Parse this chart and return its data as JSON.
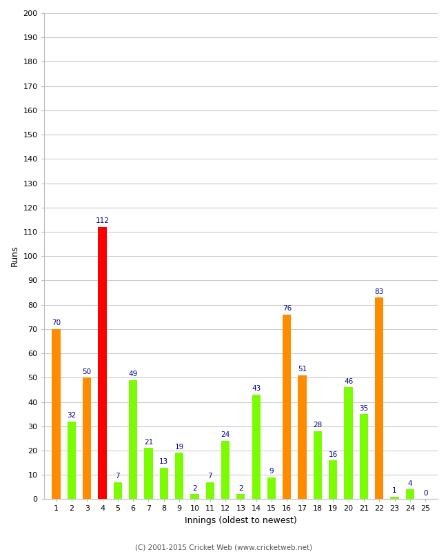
{
  "title": "",
  "xlabel": "Innings (oldest to newest)",
  "ylabel": "Runs",
  "innings": [
    1,
    2,
    3,
    4,
    5,
    6,
    7,
    8,
    9,
    10,
    11,
    12,
    13,
    14,
    15,
    16,
    17,
    18,
    19,
    20,
    21,
    22,
    23,
    24,
    25
  ],
  "values": [
    70,
    32,
    50,
    112,
    7,
    49,
    21,
    13,
    19,
    2,
    7,
    24,
    2,
    43,
    9,
    76,
    51,
    28,
    16,
    46,
    35,
    83,
    1,
    4,
    0
  ],
  "colors": [
    "#FF8C00",
    "#7CFC00",
    "#FF8C00",
    "#FF0000",
    "#7CFC00",
    "#7CFC00",
    "#7CFC00",
    "#7CFC00",
    "#7CFC00",
    "#7CFC00",
    "#7CFC00",
    "#7CFC00",
    "#7CFC00",
    "#7CFC00",
    "#7CFC00",
    "#FF8C00",
    "#FF8C00",
    "#7CFC00",
    "#7CFC00",
    "#7CFC00",
    "#7CFC00",
    "#FF8C00",
    "#7CFC00",
    "#7CFC00",
    "#7CFC00"
  ],
  "ylim": [
    0,
    200
  ],
  "yticks": [
    0,
    10,
    20,
    30,
    40,
    50,
    60,
    70,
    80,
    90,
    100,
    110,
    120,
    130,
    140,
    150,
    160,
    170,
    180,
    190,
    200
  ],
  "label_color": "#00008B",
  "label_fontsize": 7.5,
  "axis_fontsize": 8,
  "footer": "(C) 2001-2015 Cricket Web (www.cricketweb.net)",
  "background_color": "#FFFFFF",
  "grid_color": "#CCCCCC",
  "bar_width": 0.55
}
